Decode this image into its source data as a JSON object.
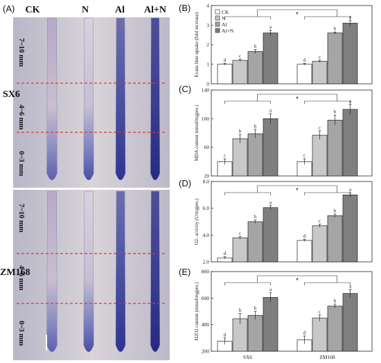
{
  "stain": {
    "panel_label": "(A)",
    "columns": [
      "CK",
      "N",
      "Al",
      "Al+N"
    ],
    "rows": [
      {
        "name": "SX6",
        "zones": [
          "7~10 mm",
          "4~6 mm",
          "0~3 mm"
        ]
      },
      {
        "name": "ZM168",
        "zones": [
          "7~10 mm",
          "4~6 mm",
          "0~3 mm"
        ]
      }
    ]
  },
  "colors": {
    "CK": "#ffffff",
    "N": "#c8c8c8",
    "Al": "#a5a5a5",
    "Al+N": "#7f7f7f",
    "background_stain": "#c9c4cd",
    "root_blue": "#3c3f9c",
    "dash_line": "#e0342f"
  },
  "chart_data": [
    {
      "panel": "(B)",
      "type": "bar",
      "categories": [
        "SX6",
        "ZM168"
      ],
      "series": [
        {
          "name": "CK",
          "values": [
            1.0,
            1.0
          ],
          "errors": [
            0.05,
            0.05
          ],
          "letters": [
            "d",
            "d"
          ]
        },
        {
          "name": "N",
          "values": [
            1.2,
            1.15
          ],
          "errors": [
            0.06,
            0.06
          ],
          "letters": [
            "c",
            "c"
          ]
        },
        {
          "name": "Al",
          "values": [
            1.65,
            2.6
          ],
          "errors": [
            0.1,
            0.05
          ],
          "letters": [
            "b",
            "b"
          ]
        },
        {
          "name": "Al+N",
          "values": [
            2.6,
            3.1
          ],
          "errors": [
            0.15,
            0.15
          ],
          "letters": [
            "a",
            "a"
          ]
        }
      ],
      "ylabel": "Evans blue uptake (fold increase)",
      "ylim": [
        0,
        4
      ],
      "yticks": [
        "0",
        "1",
        "2",
        "3",
        "4"
      ],
      "legend": [
        "CK",
        "N",
        "Al",
        "Al+N"
      ],
      "legend_position": "top-left",
      "significance": "*"
    },
    {
      "panel": "(C)",
      "type": "bar",
      "categories": [
        "SX6",
        "ZM168"
      ],
      "series": [
        {
          "name": "CK",
          "values": [
            40,
            40
          ],
          "errors": [
            4,
            4
          ],
          "letters": [
            "c",
            "c"
          ]
        },
        {
          "name": "N",
          "values": [
            72,
            77
          ],
          "errors": [
            6,
            6
          ],
          "letters": [
            "b",
            "c"
          ]
        },
        {
          "name": "Al",
          "values": [
            79,
            98
          ],
          "errors": [
            6,
            7
          ],
          "letters": [
            "b",
            "b"
          ]
        },
        {
          "name": "Al+N",
          "values": [
            100,
            113
          ],
          "errors": [
            7,
            7
          ],
          "letters": [
            "a",
            "a"
          ]
        }
      ],
      "ylabel": "MDA content (nmol/mgpro.)",
      "ylim": [
        20,
        140
      ],
      "yticks": [
        "20",
        "60",
        "100",
        "140"
      ],
      "significance": "*"
    },
    {
      "panel": "(D)",
      "type": "bar",
      "categories": [
        "SX6",
        "ZM168"
      ],
      "series": [
        {
          "name": "CK",
          "values": [
            2.3,
            3.6
          ],
          "errors": [
            0.08,
            0.08
          ],
          "letters": [
            "d",
            "d"
          ]
        },
        {
          "name": "N",
          "values": [
            3.8,
            4.7
          ],
          "errors": [
            0.1,
            0.12
          ],
          "letters": [
            "c",
            "c"
          ]
        },
        {
          "name": "Al",
          "values": [
            5.0,
            5.45
          ],
          "errors": [
            0.12,
            0.12
          ],
          "letters": [
            "b",
            "b"
          ]
        },
        {
          "name": "Al+N",
          "values": [
            6.05,
            7.0
          ],
          "errors": [
            0.15,
            0.15
          ],
          "letters": [
            "a",
            "a"
          ]
        }
      ],
      "ylabel": "O2- activity (U/mgpro.)",
      "ylim": [
        2,
        8
      ],
      "yticks": [
        "2.0",
        "4.0",
        "6.0",
        "8.0"
      ],
      "significance": "*"
    },
    {
      "panel": "(E)",
      "type": "bar",
      "categories": [
        "SX6",
        "ZM168"
      ],
      "series": [
        {
          "name": "CK",
          "values": [
            275,
            285
          ],
          "errors": [
            25,
            30
          ],
          "letters": [
            "d",
            "d"
          ]
        },
        {
          "name": "N",
          "values": [
            445,
            450
          ],
          "errors": [
            40,
            25
          ],
          "letters": [
            "b",
            "c"
          ]
        },
        {
          "name": "Al",
          "values": [
            470,
            540
          ],
          "errors": [
            30,
            15
          ],
          "letters": [
            "b",
            "b"
          ]
        },
        {
          "name": "Al+N",
          "values": [
            605,
            635
          ],
          "errors": [
            35,
            30
          ],
          "letters": [
            "a",
            "a"
          ]
        }
      ],
      "ylabel": "H2O2 content (mmol/mgpro.)",
      "ylim": [
        200,
        800
      ],
      "yticks": [
        "200",
        "400",
        "600",
        "800"
      ],
      "xticks": [
        "SX6",
        "ZM168"
      ],
      "significance": "*"
    }
  ]
}
